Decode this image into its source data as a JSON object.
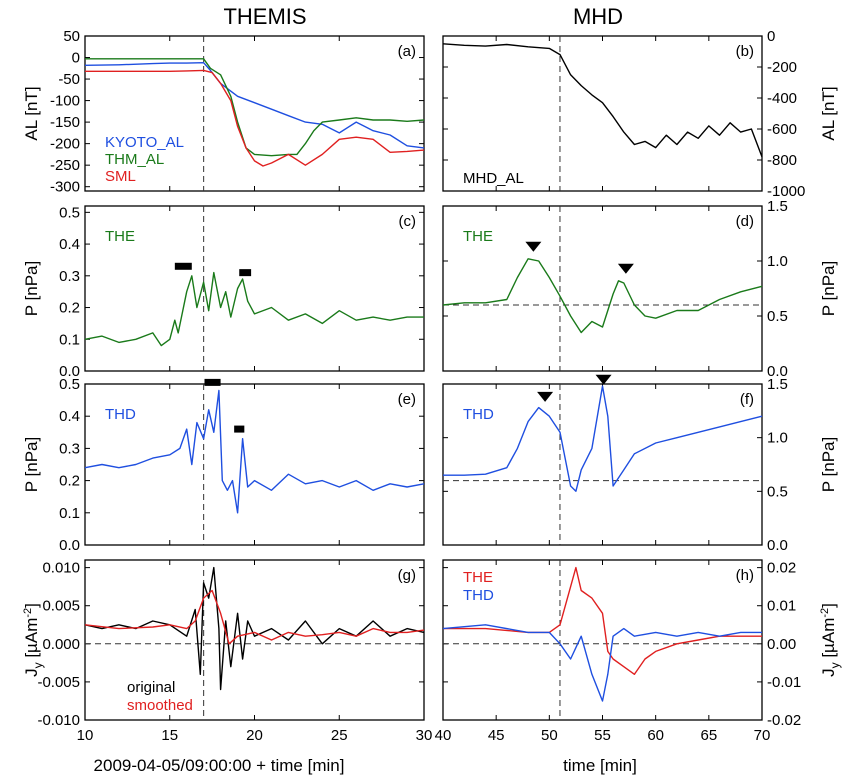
{
  "figure": {
    "col_titles": [
      "THEMIS",
      "MHD"
    ],
    "left_xlabel": "2009-04-05/09:00:00 + time [min]",
    "right_xlabel": "time [min]",
    "left_xticks": [
      10,
      15,
      20,
      25,
      30
    ],
    "right_xticks": [
      40,
      45,
      50,
      55,
      60,
      65,
      70
    ]
  },
  "chart_data": [
    {
      "panel": "(a)",
      "type": "line",
      "ylabel": "AL [nT]",
      "xlim": [
        10,
        30
      ],
      "ylim": [
        -310,
        50
      ],
      "yticks": [
        50,
        0,
        -50,
        -100,
        -150,
        -200,
        -250,
        -300
      ],
      "vline": 17,
      "series": [
        {
          "name": "KYOTO_AL",
          "color": "#1f4fe0",
          "x": [
            10,
            12,
            14,
            15,
            16,
            17,
            17.4,
            18,
            19,
            20,
            21,
            22,
            23,
            24,
            25,
            26,
            27,
            28,
            29,
            30
          ],
          "y": [
            -18,
            -17,
            -14,
            -13,
            -13,
            -12,
            -30,
            -60,
            -90,
            -105,
            -120,
            -135,
            -150,
            -155,
            -175,
            -150,
            -170,
            -180,
            -205,
            -210
          ]
        },
        {
          "name": "THM_AL",
          "color": "#1a7a1a",
          "x": [
            10,
            12,
            14,
            15,
            16,
            17,
            17.4,
            18,
            18.6,
            19,
            19.5,
            20,
            21,
            22,
            22.5,
            23,
            23.5,
            24,
            25,
            26,
            27,
            28,
            29,
            30
          ],
          "y": [
            -3,
            -3,
            -3,
            -3,
            -3,
            -3,
            -25,
            -40,
            -90,
            -150,
            -210,
            -225,
            -228,
            -225,
            -225,
            -200,
            -170,
            -150,
            -145,
            -140,
            -145,
            -145,
            -148,
            -145
          ]
        },
        {
          "name": "SML",
          "color": "#e02020",
          "x": [
            10,
            12,
            14,
            15,
            16,
            17,
            17.5,
            18,
            18.6,
            19,
            19.5,
            20,
            20.5,
            21,
            22,
            23,
            24,
            25,
            26,
            27,
            28,
            29,
            30
          ],
          "y": [
            -32,
            -32,
            -32,
            -32,
            -31,
            -30,
            -35,
            -60,
            -100,
            -160,
            -210,
            -240,
            -252,
            -245,
            -225,
            -250,
            -225,
            -190,
            -185,
            -190,
            -220,
            -218,
            -215
          ]
        }
      ]
    },
    {
      "panel": "(b)",
      "type": "line",
      "ylabel": "AL [nT]",
      "xlim": [
        40,
        70
      ],
      "ylim": [
        -1000,
        0
      ],
      "yticks": [
        0,
        -200,
        -400,
        -600,
        -800,
        -1000
      ],
      "vline": 51,
      "series": [
        {
          "name": "MHD_AL",
          "color": "#000000",
          "x": [
            40,
            42,
            44,
            46,
            48,
            50,
            51,
            52,
            53,
            54,
            55,
            56,
            57,
            58,
            59,
            60,
            61,
            62,
            63,
            64,
            65,
            66,
            67,
            68,
            69,
            70
          ],
          "y": [
            -50,
            -60,
            -65,
            -55,
            -70,
            -80,
            -120,
            -250,
            -320,
            -380,
            -430,
            -520,
            -620,
            -700,
            -680,
            -720,
            -640,
            -700,
            -620,
            -660,
            -580,
            -640,
            -560,
            -620,
            -600,
            -780
          ]
        }
      ]
    },
    {
      "panel": "(c)",
      "type": "line",
      "ylabel": "P [nPa]",
      "xlim": [
        10,
        30
      ],
      "ylim": [
        0,
        0.52
      ],
      "yticks": [
        0.5,
        0.4,
        0.3,
        0.2,
        0.1,
        0.0
      ],
      "vline": 17,
      "series": [
        {
          "name": "THE",
          "color": "#1a7a1a",
          "x": [
            10,
            11,
            12,
            13,
            14,
            14.5,
            15,
            15.3,
            15.5,
            16,
            16.3,
            16.6,
            17,
            17.3,
            17.6,
            18,
            18.3,
            18.6,
            19,
            19.3,
            19.6,
            20,
            21,
            22,
            23,
            24,
            25,
            26,
            27,
            28,
            29,
            30
          ],
          "y": [
            0.1,
            0.11,
            0.09,
            0.1,
            0.12,
            0.08,
            0.1,
            0.16,
            0.12,
            0.25,
            0.3,
            0.2,
            0.28,
            0.19,
            0.31,
            0.2,
            0.25,
            0.17,
            0.26,
            0.29,
            0.22,
            0.18,
            0.2,
            0.16,
            0.18,
            0.15,
            0.19,
            0.16,
            0.17,
            0.16,
            0.17,
            0.17
          ]
        }
      ],
      "bars": [
        {
          "x0": 15.3,
          "x1": 16.3,
          "y": 0.33
        },
        {
          "x0": 19.1,
          "x1": 19.8,
          "y": 0.31
        }
      ]
    },
    {
      "panel": "(d)",
      "type": "line",
      "ylabel": "P [nPa]",
      "xlim": [
        40,
        70
      ],
      "ylim": [
        0,
        1.5
      ],
      "yticks": [
        1.5,
        1.0,
        0.5,
        0.0
      ],
      "vline": 51,
      "hline": 0.6,
      "series": [
        {
          "name": "THE",
          "color": "#1a7a1a",
          "x": [
            40,
            42,
            44,
            46,
            47,
            48,
            49,
            50,
            51,
            52,
            53,
            54,
            55,
            56,
            56.5,
            57,
            58,
            59,
            60,
            62,
            64,
            66,
            68,
            70
          ],
          "y": [
            0.6,
            0.62,
            0.62,
            0.65,
            0.85,
            1.02,
            1.0,
            0.85,
            0.68,
            0.5,
            0.35,
            0.45,
            0.4,
            0.7,
            0.82,
            0.8,
            0.6,
            0.5,
            0.48,
            0.55,
            0.55,
            0.65,
            0.72,
            0.77
          ]
        }
      ],
      "markers": [
        {
          "x": 48.5,
          "y": 1.13
        },
        {
          "x": 57.2,
          "y": 0.93
        }
      ]
    },
    {
      "panel": "(e)",
      "type": "line",
      "ylabel": "P [nPa]",
      "xlim": [
        10,
        30
      ],
      "ylim": [
        0,
        0.5
      ],
      "yticks": [
        0.5,
        0.4,
        0.3,
        0.2,
        0.1,
        0.0
      ],
      "vline": 17,
      "series": [
        {
          "name": "THD",
          "color": "#1f4fe0",
          "x": [
            10,
            11,
            12,
            13,
            14,
            15,
            15.6,
            16,
            16.3,
            16.6,
            17,
            17.3,
            17.6,
            17.9,
            18.1,
            18.4,
            18.7,
            19,
            19.3,
            19.6,
            20,
            21,
            22,
            23,
            24,
            25,
            26,
            27,
            28,
            29,
            30
          ],
          "y": [
            0.24,
            0.25,
            0.24,
            0.25,
            0.27,
            0.28,
            0.3,
            0.36,
            0.25,
            0.38,
            0.33,
            0.42,
            0.35,
            0.48,
            0.2,
            0.17,
            0.2,
            0.1,
            0.33,
            0.18,
            0.2,
            0.17,
            0.22,
            0.19,
            0.2,
            0.18,
            0.2,
            0.17,
            0.19,
            0.18,
            0.19
          ]
        }
      ],
      "bars": [
        {
          "x0": 17.05,
          "x1": 18.0,
          "y": 0.505
        },
        {
          "x0": 18.8,
          "x1": 19.4,
          "y": 0.36
        }
      ]
    },
    {
      "panel": "(f)",
      "type": "line",
      "ylabel": "P [nPa]",
      "xlim": [
        40,
        70
      ],
      "ylim": [
        0,
        1.5
      ],
      "yticks": [
        1.5,
        1.0,
        0.5,
        0.0
      ],
      "vline": 51,
      "hline": 0.6,
      "series": [
        {
          "name": "THD",
          "color": "#1f4fe0",
          "x": [
            40,
            42,
            44,
            46,
            47,
            48,
            49,
            50,
            51,
            51.5,
            52,
            52.5,
            53,
            54,
            55,
            55.5,
            56,
            57,
            58,
            60,
            62,
            64,
            66,
            68,
            70
          ],
          "y": [
            0.65,
            0.65,
            0.66,
            0.72,
            0.9,
            1.15,
            1.28,
            1.2,
            1.05,
            0.8,
            0.55,
            0.5,
            0.7,
            0.9,
            1.48,
            1.2,
            0.55,
            0.7,
            0.85,
            0.95,
            1.0,
            1.05,
            1.1,
            1.15,
            1.2
          ]
        }
      ],
      "markers": [
        {
          "x": 49.6,
          "y": 1.38
        },
        {
          "x": 55.1,
          "y": 1.54
        }
      ]
    },
    {
      "panel": "(g)",
      "type": "line",
      "ylabel": "Jy [µAm-2]",
      "xlim": [
        10,
        30
      ],
      "ylim": [
        -0.01,
        0.011
      ],
      "yticks": [
        0.01,
        0.005,
        0.0,
        -0.005,
        -0.01
      ],
      "vline": 17,
      "hline": 0.0,
      "series": [
        {
          "name": "original",
          "color": "#000000",
          "x": [
            10,
            11,
            12,
            13,
            14,
            15,
            16,
            16.5,
            16.8,
            17,
            17.3,
            17.6,
            17.9,
            18,
            18.3,
            18.6,
            19,
            19.3,
            19.6,
            20,
            21,
            22,
            23,
            24,
            25,
            26,
            27,
            28,
            29,
            30
          ],
          "y": [
            0.0025,
            0.002,
            0.0025,
            0.002,
            0.003,
            0.0025,
            0.001,
            0.0045,
            -0.004,
            0.008,
            0.006,
            0.01,
            0.002,
            -0.006,
            0.003,
            -0.003,
            0.004,
            -0.002,
            0.003,
            0.001,
            0.002,
            0.0005,
            0.003,
            0.0,
            0.002,
            0.001,
            0.003,
            0.001,
            0.002,
            0.0015
          ]
        },
        {
          "name": "smoothed",
          "color": "#e02020",
          "x": [
            10,
            12,
            14,
            15,
            16,
            16.5,
            17,
            17.5,
            18,
            18.5,
            19,
            20,
            21,
            22,
            23,
            24,
            25,
            26,
            27,
            28,
            29,
            30
          ],
          "y": [
            0.0025,
            0.002,
            0.0022,
            0.0025,
            0.002,
            0.003,
            0.006,
            0.007,
            0.004,
            0.0,
            0.001,
            0.0015,
            0.0005,
            0.0015,
            0.001,
            0.0012,
            0.0015,
            0.001,
            0.002,
            0.0015,
            0.0015,
            0.0018
          ]
        }
      ]
    },
    {
      "panel": "(h)",
      "type": "line",
      "ylabel": "Jy [µAm-2]",
      "xlim": [
        40,
        70
      ],
      "ylim": [
        -0.02,
        0.022
      ],
      "yticks": [
        0.02,
        0.01,
        0.0,
        -0.01,
        -0.02
      ],
      "vline": 51,
      "hline": 0.0,
      "series": [
        {
          "name": "THE",
          "color": "#e02020",
          "x": [
            40,
            44,
            48,
            50,
            51,
            52,
            52.5,
            53,
            54,
            55,
            55.5,
            56,
            57,
            58,
            59,
            60,
            62,
            64,
            66,
            68,
            70
          ],
          "y": [
            0.004,
            0.004,
            0.003,
            0.003,
            0.005,
            0.015,
            0.02,
            0.014,
            0.012,
            0.008,
            -0.002,
            -0.004,
            -0.006,
            -0.008,
            -0.004,
            -0.002,
            0.0,
            0.001,
            0.002,
            0.002,
            0.002
          ]
        },
        {
          "name": "THD",
          "color": "#1f4fe0",
          "x": [
            40,
            44,
            48,
            50,
            51,
            52,
            53,
            54,
            55,
            55.5,
            56,
            57,
            58,
            60,
            62,
            64,
            66,
            68,
            70
          ],
          "y": [
            0.004,
            0.005,
            0.003,
            0.003,
            0.0,
            -0.004,
            0.002,
            -0.008,
            -0.015,
            -0.008,
            0.002,
            0.004,
            0.002,
            0.003,
            0.002,
            0.003,
            0.002,
            0.003,
            0.003
          ]
        }
      ]
    }
  ]
}
